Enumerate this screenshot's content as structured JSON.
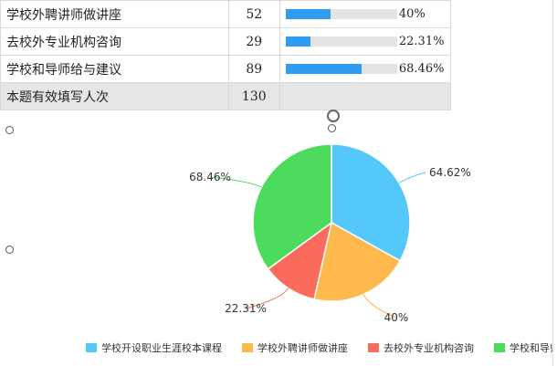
{
  "table": {
    "rows": [
      {
        "label": "学校外聘讲师做讲座",
        "count": "52",
        "percent": "40%",
        "fill": 0.4
      },
      {
        "label": "去校外专业机构咨询",
        "count": "29",
        "percent": "22.31%",
        "fill": 0.2231
      },
      {
        "label": "学校和导师给与建议",
        "count": "89",
        "percent": "68.46%",
        "fill": 0.6846
      }
    ],
    "total": {
      "label": "本题有效填写人次",
      "count": "130"
    }
  },
  "chart_data": {
    "type": "pie",
    "slices": [
      {
        "name": "学校开设职业生涯校本课程",
        "value": 64.62,
        "label": "64.62%",
        "color": "#55c8fb"
      },
      {
        "name": "学校外聘讲师做讲座",
        "value": 40,
        "label": "40%",
        "color": "#ffb84b"
      },
      {
        "name": "去校外专业机构咨询",
        "value": 22.31,
        "label": "22.31%",
        "color": "#fb6b5b"
      },
      {
        "name": "学校和导师给与建议",
        "value": 68.46,
        "label": "68.46%",
        "color": "#4cdb5c"
      }
    ],
    "legend_position": "bottom"
  },
  "legend": [
    {
      "label": "学校开设职业生涯校本课程",
      "color": "#55c8fb"
    },
    {
      "label": "学校外聘讲师做讲座",
      "color": "#ffb84b"
    },
    {
      "label": "去校外专业机构咨询",
      "color": "#fb6b5b"
    },
    {
      "label": "学校和导师给与",
      "color": "#4cdb5c"
    }
  ]
}
